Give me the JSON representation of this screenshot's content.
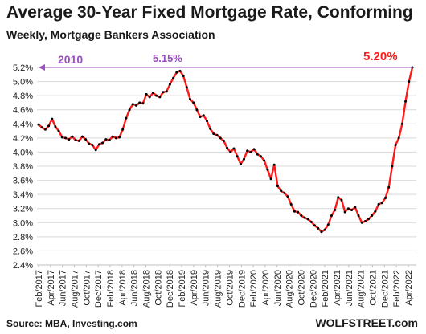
{
  "title": "Average 30-Year Fixed Mortgage Rate, Conforming",
  "subtitle": "Weekly, Mortgage Bankers Association",
  "source": "Source: MBA,  Investing.com",
  "brand": "WOLFSTREET.com",
  "colors": {
    "line": "#ff1a1a",
    "markers": "#000000",
    "annotation_purple": "#9b4fc0",
    "annotation_red": "#ff1a1a",
    "grid": "#d9d9d9"
  },
  "chart_data": {
    "type": "line",
    "title": "Average 30-Year Fixed Mortgage Rate, Conforming",
    "subtitle": "Weekly, Mortgage Bankers Association",
    "xlabel": "",
    "ylabel": "",
    "ylim": [
      2.4,
      5.2
    ],
    "yticks": [
      "2.4%",
      "2.6%",
      "2.8%",
      "3.0%",
      "3.2%",
      "3.4%",
      "3.6%",
      "3.8%",
      "4.0%",
      "4.2%",
      "4.4%",
      "4.6%",
      "4.8%",
      "5.0%",
      "5.2%"
    ],
    "xticks": [
      "Feb/2017",
      "Apr/2017",
      "Jun/2017",
      "Aug/2017",
      "Oct/2017",
      "Dec/2017",
      "Feb/2018",
      "Apr/2018",
      "Jun/2018",
      "Aug/2018",
      "Oct/2018",
      "Dec/2018",
      "Feb/2019",
      "Apr/2019",
      "Jun/2019",
      "Aug/2019",
      "Oct/2019",
      "Dec/2019",
      "Feb/2020",
      "Apr/2020",
      "Jun/2020",
      "Aug/2020",
      "Oct/2020",
      "Dec/2020",
      "Feb/2021",
      "Apr/2021",
      "Jun/2021",
      "Aug/2021",
      "Oct/2021",
      "Dec/2021",
      "Feb/2022",
      "Apr/2022"
    ],
    "grid": true,
    "series": [
      {
        "values": [
          4.39,
          4.35,
          4.32,
          4.37,
          4.47,
          4.36,
          4.3,
          4.21,
          4.2,
          4.18,
          4.22,
          4.17,
          4.16,
          4.22,
          4.18,
          4.12,
          4.1,
          4.03,
          4.11,
          4.13,
          4.18,
          4.17,
          4.22,
          4.2,
          4.21,
          4.32,
          4.48,
          4.6,
          4.68,
          4.66,
          4.7,
          4.69,
          4.82,
          4.78,
          4.84,
          4.8,
          4.78,
          4.85,
          4.86,
          4.96,
          5.05,
          5.13,
          5.15,
          5.08,
          4.92,
          4.75,
          4.7,
          4.6,
          4.5,
          4.52,
          4.44,
          4.33,
          4.26,
          4.24,
          4.2,
          4.16,
          4.06,
          4.0,
          4.05,
          3.94,
          3.83,
          3.9,
          4.02,
          4.0,
          4.04,
          3.97,
          3.94,
          3.88,
          3.75,
          3.62,
          3.82,
          3.52,
          3.45,
          3.42,
          3.37,
          3.26,
          3.16,
          3.15,
          3.1,
          3.07,
          3.05,
          3.01,
          2.96,
          2.92,
          2.87,
          2.9,
          2.97,
          3.1,
          3.18,
          3.36,
          3.32,
          3.15,
          3.2,
          3.18,
          3.22,
          3.1,
          3.0,
          3.02,
          3.05,
          3.1,
          3.16,
          3.26,
          3.28,
          3.35,
          3.5,
          3.8,
          4.1,
          4.2,
          4.4,
          4.72,
          5.0,
          5.2
        ]
      }
    ],
    "annotations": [
      "2010",
      "5.15%",
      "5.20%"
    ]
  }
}
